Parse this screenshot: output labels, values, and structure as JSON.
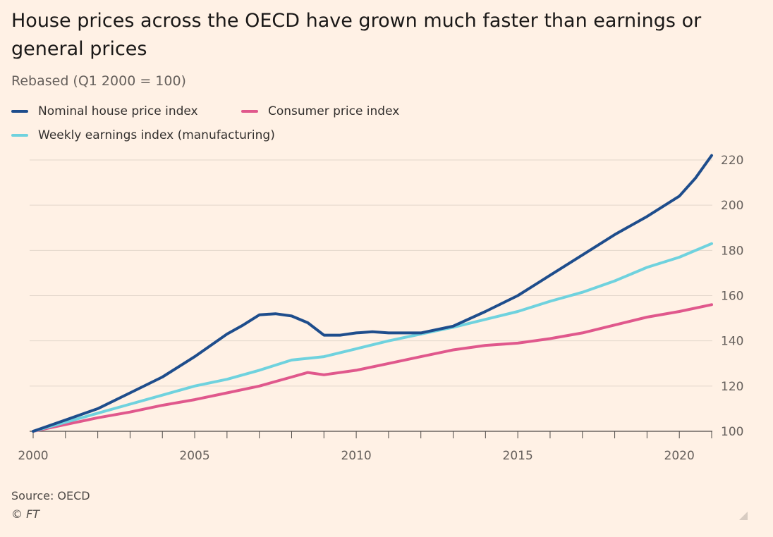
{
  "chart_data": {
    "type": "line",
    "title": "House prices across the OECD have grown much faster than earnings or general prices",
    "subtitle": "Rebased (Q1 2000 = 100)",
    "xlabel": "",
    "ylabel": "",
    "xlim": [
      2000,
      2021
    ],
    "ylim": [
      100,
      225
    ],
    "x_ticks": [
      2000,
      2005,
      2010,
      2015,
      2020
    ],
    "x_tick_labels": [
      "2000",
      "2005",
      "2010",
      "2015",
      "2020"
    ],
    "y_ticks": [
      100,
      120,
      140,
      160,
      180,
      200,
      220
    ],
    "y_tick_labels": [
      "100",
      "120",
      "140",
      "160",
      "180",
      "200",
      "220"
    ],
    "grid": true,
    "legend_position": "top-left",
    "series": [
      {
        "name": "Nominal house price index",
        "color": "#1e4d8c",
        "x": [
          2000,
          2001,
          2002,
          2003,
          2004,
          2005,
          2006,
          2006.5,
          2007,
          2007.5,
          2008,
          2008.5,
          2009,
          2009.5,
          2010,
          2010.5,
          2011,
          2012,
          2013,
          2014,
          2015,
          2016,
          2017,
          2018,
          2019,
          2020,
          2020.5,
          2021
        ],
        "values": [
          100,
          105,
          110,
          117,
          124,
          133,
          143,
          147,
          151.5,
          152,
          151,
          148,
          142.5,
          142.5,
          143.5,
          144,
          143.5,
          143.5,
          146.5,
          153,
          160,
          169,
          178,
          187,
          195,
          204,
          212,
          222
        ]
      },
      {
        "name": "Consumer price index",
        "color": "#e0588c",
        "x": [
          2000,
          2001,
          2002,
          2003,
          2004,
          2005,
          2006,
          2007,
          2008,
          2008.5,
          2009,
          2010,
          2011,
          2012,
          2013,
          2014,
          2015,
          2016,
          2017,
          2018,
          2019,
          2020,
          2021
        ],
        "values": [
          100,
          103,
          106,
          108.5,
          111.5,
          114,
          117,
          120,
          124,
          126,
          125,
          127,
          130,
          133,
          136,
          138,
          139,
          141,
          143.5,
          147,
          150.5,
          153,
          156
        ]
      },
      {
        "name": "Weekly earnings index (manufacturing)",
        "color": "#6fd2de",
        "x": [
          2000,
          2001,
          2002,
          2003,
          2004,
          2005,
          2006,
          2007,
          2008,
          2009,
          2010,
          2011,
          2012,
          2013,
          2014,
          2015,
          2016,
          2017,
          2018,
          2019,
          2020,
          2021
        ],
        "values": [
          100,
          104,
          108,
          112,
          116,
          120,
          123,
          127,
          131.5,
          133,
          136.5,
          140,
          143,
          146,
          149.5,
          153,
          157.5,
          161.5,
          166.5,
          172.5,
          177,
          183
        ]
      }
    ]
  },
  "footer": {
    "source": "Source: OECD",
    "copyright": "© FT"
  }
}
